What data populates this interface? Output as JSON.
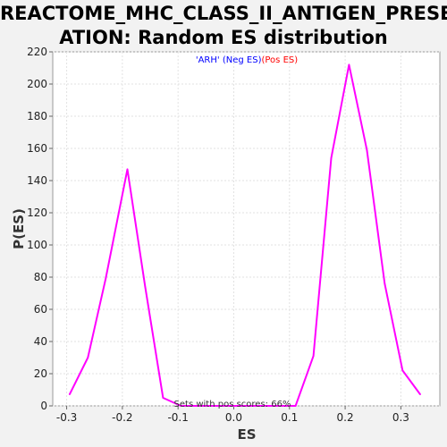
{
  "chart_data": {
    "type": "line",
    "title_lines": [
      "REACTOME_MHC_CLASS_II_ANTIGEN_PRESENT",
      "ATION: Random ES distribution"
    ],
    "xlabel": "ES",
    "ylabel": "P(ES)",
    "xlim": [
      -0.325,
      0.37
    ],
    "ylim": [
      0,
      220
    ],
    "xticks": [
      -0.3,
      -0.2,
      -0.1,
      0.0,
      0.1,
      0.2,
      0.3
    ],
    "xtick_labels": [
      "-0.3",
      "-0.2",
      "-0.1",
      "0.0",
      "0.1",
      "0.2",
      "0.3"
    ],
    "yticks": [
      0,
      20,
      40,
      60,
      80,
      100,
      120,
      140,
      160,
      180,
      200,
      220
    ],
    "grid": true,
    "legend": {
      "prefix": "'ARH' ",
      "neg": "(Neg ES)",
      "pos": "(Pos ES)",
      "neg_color": "#0000ff",
      "pos_color": "#ff0000"
    },
    "annotation": "Sets with pos scores: 66%",
    "series": [
      {
        "color": "#ff00ff",
        "x": [
          -0.295,
          -0.262,
          -0.23,
          -0.191,
          -0.159,
          -0.127,
          -0.095,
          -0.063,
          -0.031,
          0.0,
          0.031,
          0.063,
          0.095,
          0.111,
          0.143,
          0.175,
          0.207,
          0.239,
          0.271,
          0.303,
          0.335
        ],
        "y": [
          7,
          30,
          79,
          147,
          74,
          5,
          0,
          0,
          0,
          0,
          0,
          0,
          0,
          0,
          31,
          154,
          212,
          159,
          76,
          22,
          7
        ]
      }
    ]
  }
}
